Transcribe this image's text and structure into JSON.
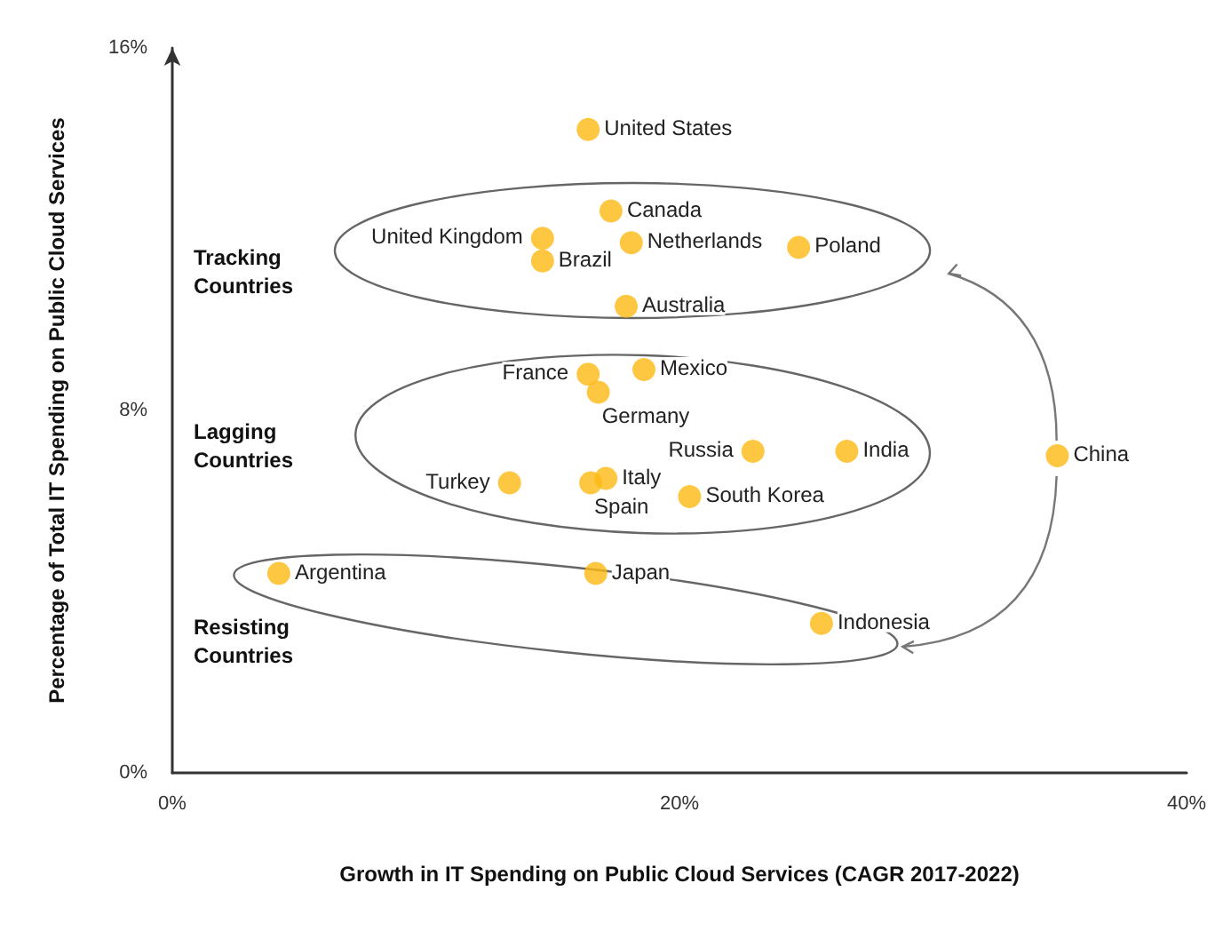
{
  "chart_data": {
    "type": "scatter",
    "xlabel": "Growth in IT Spending on Public Cloud Services (CAGR 2017-2022)",
    "ylabel": "Percentage of Total IT Spending on Public Cloud Services",
    "x": [
      16.4,
      17.3,
      14.6,
      14.6,
      18.1,
      24.7,
      17.9,
      16.4,
      16.8,
      18.6,
      22.9,
      26.6,
      34.9,
      17.1,
      16.5,
      13.3,
      20.4,
      4.2,
      16.7,
      25.6
    ],
    "values": [
      14.2,
      12.4,
      11.8,
      11.3,
      11.7,
      11.6,
      10.3,
      8.8,
      8.4,
      8.9,
      7.1,
      7.1,
      7.0,
      6.5,
      6.4,
      6.4,
      6.1,
      4.4,
      4.4,
      3.3
    ],
    "color": "#fdb913",
    "marker": "circle",
    "xlim": [
      0,
      40
    ],
    "xticks": [
      {
        "value": 0,
        "label": "0%"
      },
      {
        "value": 20,
        "label": "20%"
      },
      {
        "value": 40,
        "label": "40%"
      }
    ],
    "ylim": [
      0,
      16
    ],
    "yticks": [
      {
        "value": 0,
        "label": "0%"
      },
      {
        "value": 8,
        "label": "8%"
      },
      {
        "value": 16,
        "label": "16%"
      }
    ],
    "annotations": [
      {
        "text": "United States",
        "x": 16.4,
        "y": 14.2
      },
      {
        "text": "Canada",
        "x": 17.3,
        "y": 12.4
      },
      {
        "text": "United Kingdom",
        "x": 14.6,
        "y": 11.8
      },
      {
        "text": "Brazil",
        "x": 14.6,
        "y": 11.3
      },
      {
        "text": "Netherlands",
        "x": 18.1,
        "y": 11.7
      },
      {
        "text": "Poland",
        "x": 24.7,
        "y": 11.6
      },
      {
        "text": "Australia",
        "x": 17.9,
        "y": 10.3
      },
      {
        "text": "France",
        "x": 16.4,
        "y": 8.8
      },
      {
        "text": "Germany",
        "x": 16.8,
        "y": 8.4
      },
      {
        "text": "Mexico",
        "x": 18.6,
        "y": 8.9
      },
      {
        "text": "Russia",
        "x": 22.9,
        "y": 7.1
      },
      {
        "text": "India",
        "x": 26.6,
        "y": 7.1
      },
      {
        "text": "China",
        "x": 34.9,
        "y": 7.0
      },
      {
        "text": "Italy",
        "x": 17.1,
        "y": 6.5
      },
      {
        "text": "Spain",
        "x": 16.5,
        "y": 6.4
      },
      {
        "text": "Turkey",
        "x": 13.3,
        "y": 6.4
      },
      {
        "text": "South Korea",
        "x": 20.4,
        "y": 6.1
      },
      {
        "text": "Argentina",
        "x": 4.2,
        "y": 4.4
      },
      {
        "text": "Japan",
        "x": 16.7,
        "y": 4.4
      },
      {
        "text": "Indonesia",
        "x": 25.6,
        "y": 3.3
      },
      "Tracking Countries",
      "Lagging Countries",
      "Resisting Countries"
    ]
  }
}
